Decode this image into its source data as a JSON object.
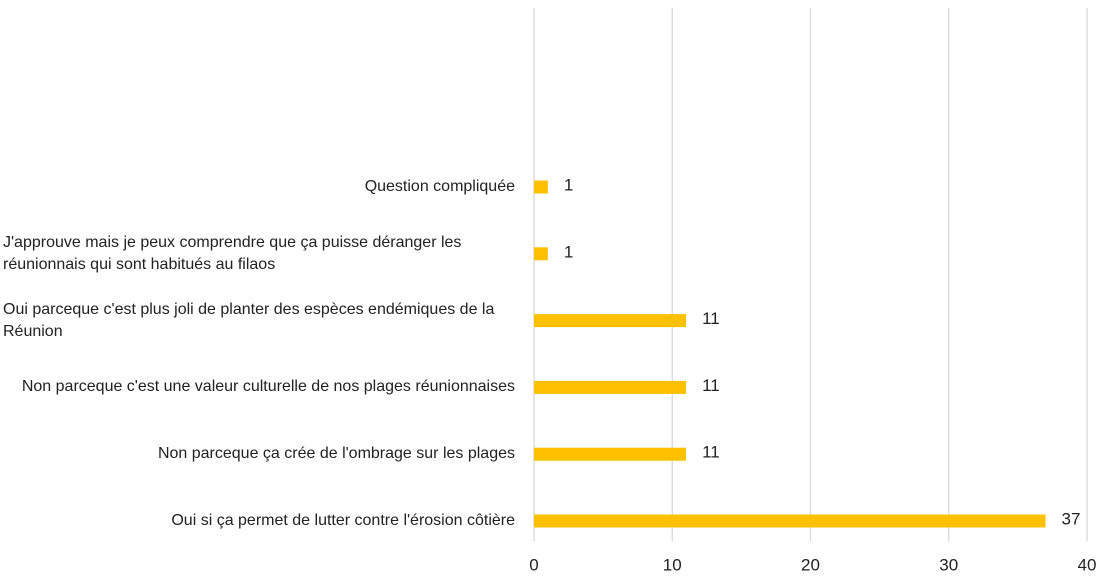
{
  "chart_data": {
    "type": "barh",
    "categories": [
      "Question compliquée",
      "J'approuve mais je peux comprendre que ça puisse déranger les réunionnais qui sont habitués au filaos",
      "Oui parceque c'est plus joli de planter des espèces endémiques de la Réunion",
      "Non parceque c'est une valeur culturelle de nos plages réunionnaises",
      "Non parceque ça crée de l'ombrage sur les plages",
      "Oui si ça permet de lutter contre l'érosion côtière"
    ],
    "values": [
      1,
      1,
      11,
      11,
      11,
      37
    ],
    "color": "#ffc000",
    "xlim": [
      0,
      40
    ],
    "xticks": [
      0,
      10,
      20,
      30,
      40
    ],
    "grid": true
  }
}
